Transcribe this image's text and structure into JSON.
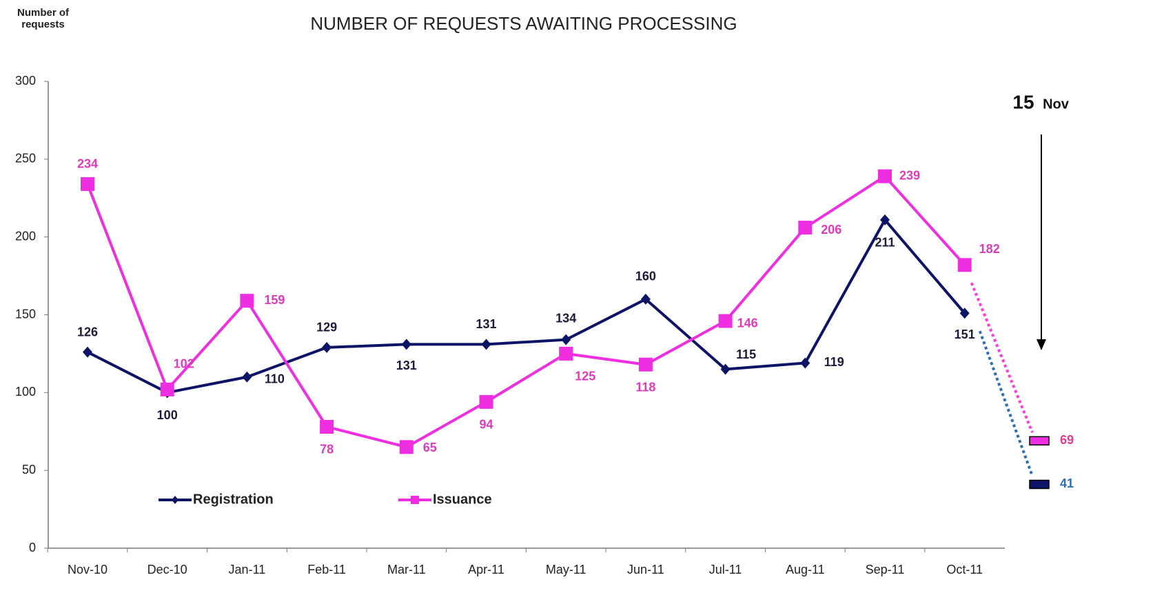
{
  "chart_data": {
    "type": "line",
    "title": "NUMBER OF REQUESTS AWAITING PROCESSING",
    "y_label": "Number of requests",
    "categories": [
      "Nov-10",
      "Dec-10",
      "Jan-11",
      "Feb-11",
      "Mar-11",
      "Apr-11",
      "May-11",
      "Jun-11",
      "Jul-11",
      "Aug-11",
      "Sep-11",
      "Oct-11"
    ],
    "series": [
      {
        "name": "Registration",
        "color": "#0d1466",
        "marker": "diamond",
        "label_color": "#1a1a3a",
        "values": [
          126,
          100,
          110,
          129,
          131,
          131,
          134,
          160,
          115,
          119,
          211,
          151
        ],
        "latest": {
          "value": 41,
          "color": "#2e6db4"
        }
      },
      {
        "name": "Issuance",
        "color": "#ee2ee0",
        "marker": "square",
        "label_color": "#e03aba",
        "values": [
          234,
          102,
          159,
          78,
          65,
          94,
          125,
          118,
          146,
          206,
          239,
          182
        ],
        "latest": {
          "value": 69,
          "color": "#e8388f"
        }
      }
    ],
    "latest_date": {
      "day": "15",
      "month": "Nov"
    },
    "ylim": [
      0,
      300
    ],
    "yticks": [
      0,
      50,
      100,
      150,
      200,
      250,
      300
    ],
    "grid": false,
    "legend": "lower left"
  }
}
